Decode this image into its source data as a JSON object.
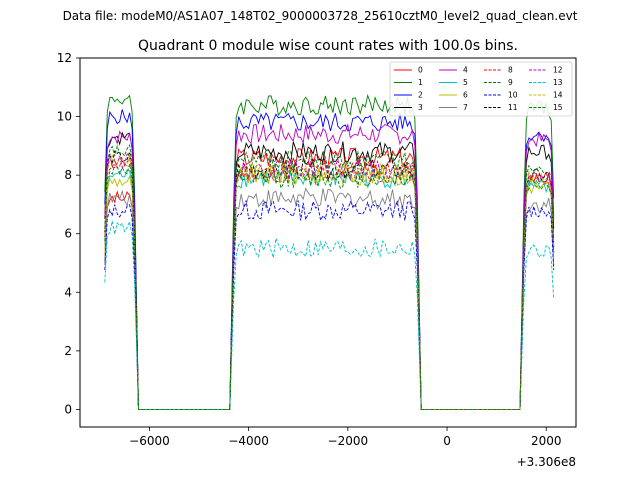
{
  "chart_data": {
    "type": "line",
    "suptitle": "Data file: modeM0/AS1A07_148T02_9000003728_25610cztM0_level2_quad_clean.evt",
    "title": "Quadrant 0 module wise count rates with 100.0s bins.",
    "xlabel": "",
    "ylabel": "",
    "x_offset_label": "+3.306e8",
    "xlim": [
      -7400,
      2600
    ],
    "ylim": [
      -0.6,
      12
    ],
    "xticks": [
      -6000,
      -4000,
      -2000,
      0,
      2000
    ],
    "xtick_labels": [
      "−6000",
      "−4000",
      "−2000",
      "0",
      "2000"
    ],
    "yticks": [
      0,
      2,
      4,
      6,
      8,
      10,
      12
    ],
    "ytick_labels": [
      "0",
      "2",
      "4",
      "6",
      "8",
      "10",
      "12"
    ],
    "grid": false,
    "legend_location": "upper right",
    "legend_columns": 4,
    "bin_size": 100,
    "segments": [
      [
        -6900,
        -6300
      ],
      [
        -4300,
        -600
      ],
      [
        1550,
        2150
      ]
    ],
    "series": [
      {
        "name": "0",
        "color": "#ff0000",
        "dash": "solid",
        "levels": [
          7.2,
          8.6,
          7.9
        ]
      },
      {
        "name": "1",
        "color": "#008000",
        "dash": "solid",
        "levels": [
          10.6,
          10.4,
          10.3
        ]
      },
      {
        "name": "2",
        "color": "#0000ff",
        "dash": "solid",
        "levels": [
          10.0,
          9.8,
          9.4
        ]
      },
      {
        "name": "3",
        "color": "#000000",
        "dash": "solid",
        "levels": [
          9.3,
          8.8,
          8.8
        ]
      },
      {
        "name": "4",
        "color": "#bf00bf",
        "dash": "solid",
        "levels": [
          9.3,
          9.4,
          9.2
        ]
      },
      {
        "name": "5",
        "color": "#00bfbf",
        "dash": "solid",
        "levels": [
          8.0,
          7.9,
          7.6
        ]
      },
      {
        "name": "6",
        "color": "#bfbf00",
        "dash": "solid",
        "levels": [
          7.8,
          8.0,
          7.6
        ]
      },
      {
        "name": "7",
        "color": "#808080",
        "dash": "solid",
        "levels": [
          7.2,
          7.2,
          7.0
        ]
      },
      {
        "name": "8",
        "color": "#ff0000",
        "dash": "dashed",
        "levels": [
          8.4,
          8.1,
          7.9
        ]
      },
      {
        "name": "9",
        "color": "#008000",
        "dash": "dashed",
        "levels": [
          8.2,
          7.9,
          7.7
        ]
      },
      {
        "name": "10",
        "color": "#0000ff",
        "dash": "dashed",
        "levels": [
          6.8,
          6.8,
          6.8
        ]
      },
      {
        "name": "11",
        "color": "#000000",
        "dash": "dashed",
        "levels": [
          8.6,
          8.2,
          8.0
        ]
      },
      {
        "name": "12",
        "color": "#bf00bf",
        "dash": "dashed",
        "levels": [
          8.5,
          8.2,
          7.9
        ]
      },
      {
        "name": "13",
        "color": "#00bfbf",
        "dash": "dashed",
        "levels": [
          6.2,
          5.5,
          5.4
        ]
      },
      {
        "name": "14",
        "color": "#bfbf00",
        "dash": "dashed",
        "levels": [
          8.5,
          8.1,
          7.9
        ]
      },
      {
        "name": "15",
        "color": "#008000",
        "dash": "dashed",
        "levels": [
          8.8,
          8.5,
          8.3
        ]
      }
    ]
  }
}
